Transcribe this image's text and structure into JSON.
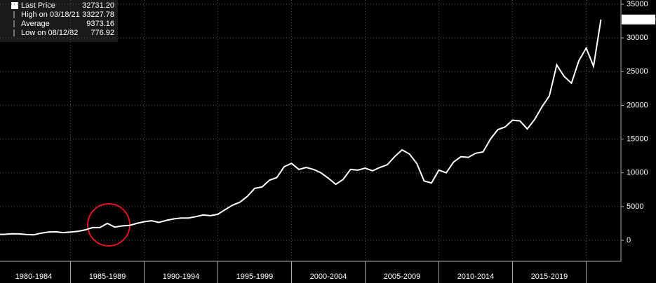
{
  "legend": [
    {
      "label": "Last Price",
      "value": "32731.20"
    },
    {
      "label": "High on 03/18/21",
      "value": "33227.78"
    },
    {
      "label": "Average",
      "value": "9373.16"
    },
    {
      "label": "Low on 08/12/82",
      "value": "776.92"
    }
  ],
  "chart_data": {
    "type": "line",
    "grid": true,
    "categories": [
      null,
      null,
      null,
      null,
      null,
      "1980-1984",
      null,
      null,
      null,
      null,
      null,
      null,
      null,
      null,
      null,
      "1985-1989",
      null,
      null,
      null,
      null,
      null,
      null,
      null,
      null,
      null,
      "1990-1994",
      null,
      null,
      null,
      null,
      null,
      null,
      null,
      null,
      null,
      "1995-1999",
      null,
      null,
      null,
      null,
      null,
      null,
      null,
      null,
      null,
      "2000-2004",
      null,
      null,
      null,
      null,
      null,
      null,
      null,
      null,
      null,
      "2005-2009",
      null,
      null,
      null,
      null,
      null,
      null,
      null,
      null,
      null,
      "2010-2014",
      null,
      null,
      null,
      null,
      null,
      null,
      null,
      null,
      null,
      "2015-2019",
      null,
      null,
      null,
      null,
      null,
      null,
      null
    ],
    "series": [
      {
        "name": "Last Price",
        "color": "#ffffff",
        "values": [
          875,
          870,
          960,
          950,
          850,
          810,
          1050,
          1220,
          1260,
          1130,
          1210,
          1330,
          1550,
          1880,
          1900,
          2500,
          1950,
          2130,
          2200,
          2500,
          2750,
          2900,
          2650,
          2950,
          3170,
          3300,
          3300,
          3500,
          3750,
          3650,
          3850,
          4550,
          5200,
          5650,
          6500,
          7700,
          7900,
          8900,
          9300,
          10900,
          11400,
          10500,
          10800,
          10500,
          10000,
          9200,
          8300,
          9000,
          10500,
          10400,
          10700,
          10300,
          10800,
          11200,
          12400,
          13400,
          12800,
          11400,
          8800,
          8500,
          10400,
          10000,
          11600,
          12400,
          12300,
          12900,
          13100,
          15000,
          16400,
          16800,
          17800,
          17700,
          16500,
          17900,
          19800,
          21400,
          26000,
          24300,
          23300,
          26600,
          28500,
          25800,
          32731
        ]
      }
    ],
    "ylim": [
      -3000,
      35000
    ],
    "yticks": [
      0,
      5000,
      10000,
      15000,
      20000,
      25000,
      30000,
      35000
    ]
  }
}
